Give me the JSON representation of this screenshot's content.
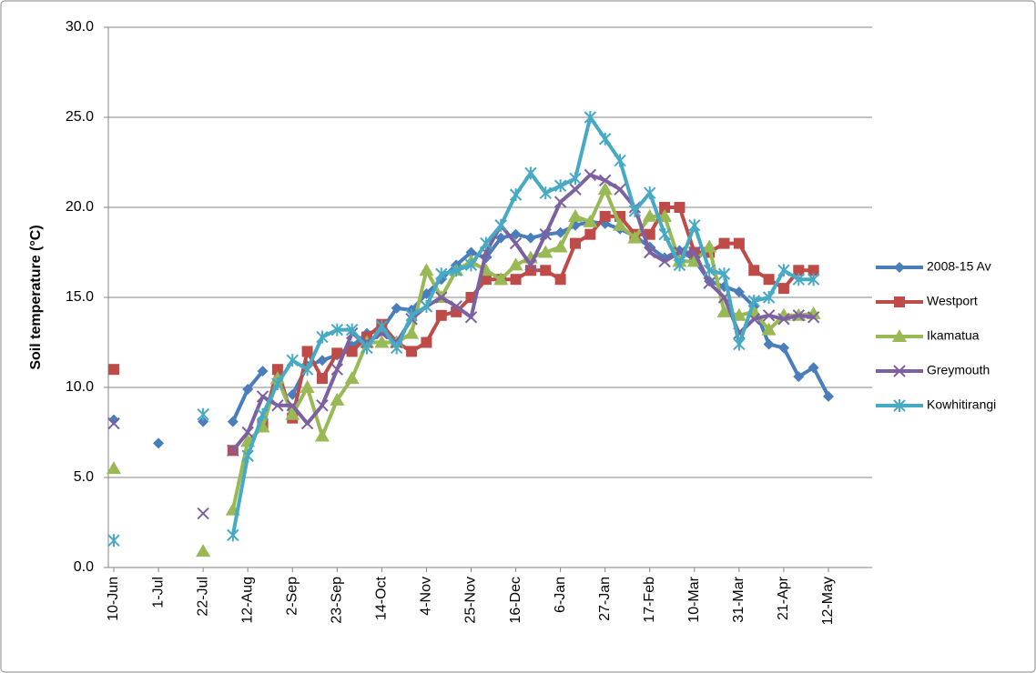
{
  "chart_data": {
    "type": "line",
    "y_label": "Soil temperature (°C)",
    "categories": [
      "10-Jun",
      null,
      null,
      "1-Jul",
      null,
      null,
      "22-Jul",
      null,
      null,
      "12-Aug",
      null,
      null,
      "2-Sep",
      null,
      null,
      "23-Sep",
      null,
      null,
      "14-Oct",
      null,
      null,
      "4-Nov",
      null,
      null,
      "25-Nov",
      null,
      null,
      "16-Dec",
      null,
      null,
      "6-Jan",
      null,
      null,
      "27-Jan",
      null,
      null,
      "17-Feb",
      null,
      null,
      "10-Mar",
      null,
      null,
      "31-Mar",
      null,
      null,
      "21-Apr",
      null,
      null,
      "12-May"
    ],
    "ylim": [
      0,
      30
    ],
    "yticks": [
      {
        "value": 0,
        "label": "0.0"
      },
      {
        "value": 5,
        "label": "5.0"
      },
      {
        "value": 10,
        "label": "10.0"
      },
      {
        "value": 15,
        "label": "15.0"
      },
      {
        "value": 20,
        "label": "20.0"
      },
      {
        "value": 25,
        "label": "25.0"
      },
      {
        "value": 30,
        "label": "30.0"
      }
    ],
    "grid": true,
    "legend": "right",
    "series": [
      {
        "name": "2008-15 Av",
        "color": "#4a7ebb",
        "marker": "diamond",
        "values": [
          8.2,
          null,
          null,
          6.9,
          null,
          null,
          8.1,
          null,
          8.1,
          9.9,
          10.9,
          null,
          9.6,
          11.2,
          11.5,
          11.8,
          12.3,
          13.0,
          13.2,
          14.4,
          14.3,
          15.2,
          16.0,
          16.8,
          17.5,
          17.2,
          18.3,
          18.5,
          18.3,
          18.5,
          18.6,
          19.0,
          19.2,
          19.1,
          18.8,
          18.4,
          17.8,
          17.2,
          17.6,
          17.1,
          15.9,
          15.6,
          15.3,
          14.5,
          12.4,
          12.2,
          10.6,
          11.1,
          9.5
        ]
      },
      {
        "name": "Westport",
        "color": "#be4b48",
        "marker": "square",
        "values": [
          11.0,
          null,
          null,
          null,
          null,
          null,
          null,
          null,
          6.5,
          null,
          7.9,
          11.0,
          8.3,
          12.0,
          10.5,
          11.9,
          12.0,
          12.8,
          13.5,
          12.5,
          12.0,
          12.5,
          14.0,
          14.2,
          15.0,
          16.0,
          16.0,
          16.0,
          16.5,
          16.5,
          16.0,
          18.0,
          18.5,
          19.5,
          19.5,
          18.5,
          18.5,
          20.0,
          20.0,
          17.5,
          17.5,
          18.0,
          18.0,
          16.5,
          16.0,
          15.5,
          16.5,
          16.5,
          null
        ]
      },
      {
        "name": "Ikamatua",
        "color": "#98b954",
        "marker": "triangle",
        "values": [
          5.5,
          null,
          null,
          null,
          null,
          null,
          0.9,
          null,
          3.2,
          7.0,
          7.8,
          10.5,
          8.5,
          10.0,
          7.3,
          9.3,
          10.5,
          12.5,
          12.5,
          12.5,
          13.0,
          16.5,
          15.0,
          16.5,
          17.0,
          16.5,
          16.0,
          16.8,
          17.2,
          17.5,
          17.8,
          19.5,
          19.2,
          21.0,
          19.0,
          18.3,
          19.5,
          19.5,
          17.0,
          17.0,
          17.8,
          14.2,
          14.0,
          14.2,
          13.2,
          14.0,
          14.0,
          14.1,
          null
        ]
      },
      {
        "name": "Greymouth",
        "color": "#7d60a0",
        "marker": "x",
        "values": [
          8.0,
          null,
          null,
          null,
          null,
          null,
          3.0,
          null,
          6.5,
          7.5,
          9.5,
          9.0,
          9.0,
          8.0,
          9.0,
          11.0,
          13.0,
          12.5,
          13.0,
          12.5,
          13.8,
          14.5,
          15.0,
          14.5,
          13.9,
          17.5,
          19.0,
          18.0,
          16.8,
          18.5,
          20.3,
          21.0,
          21.8,
          21.5,
          21.0,
          20.0,
          17.5,
          17.0,
          17.5,
          17.5,
          15.8,
          15.0,
          13.0,
          13.8,
          14.0,
          13.8,
          14.0,
          13.9,
          null
        ]
      },
      {
        "name": "Kowhitirangi",
        "color": "#46aac5",
        "marker": "star",
        "values": [
          1.5,
          null,
          null,
          null,
          null,
          null,
          8.5,
          null,
          1.8,
          6.2,
          8.5,
          10.2,
          11.5,
          11.0,
          12.8,
          13.2,
          13.2,
          12.2,
          13.4,
          12.2,
          14.0,
          14.5,
          16.3,
          16.5,
          16.8,
          18.0,
          19.0,
          20.7,
          21.9,
          20.8,
          21.2,
          21.6,
          25.0,
          23.8,
          22.6,
          19.8,
          20.8,
          18.5,
          16.8,
          19.0,
          16.5,
          16.3,
          12.4,
          14.8,
          15.0,
          16.5,
          16.0,
          16.0,
          null
        ]
      }
    ]
  }
}
